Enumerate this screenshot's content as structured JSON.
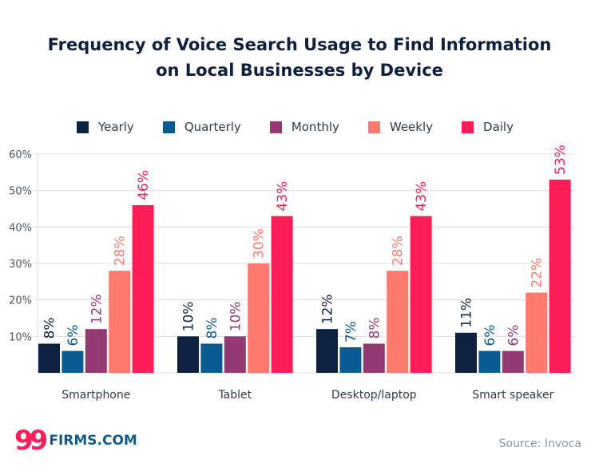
{
  "chart_data": {
    "type": "bar",
    "title": "Frequency of Voice Search Usage to Find Information on Local Businesses by Device",
    "title_lines": [
      "Frequency of Voice Search Usage to Find Information",
      "on Local Businesses by Device"
    ],
    "categories": [
      "Smartphone",
      "Tablet",
      "Desktop/laptop",
      "Smart speaker"
    ],
    "series": [
      {
        "name": "Yearly",
        "color": "#0e2140",
        "values": [
          8,
          10,
          12,
          11
        ]
      },
      {
        "name": "Quarterly",
        "color": "#0a5a94",
        "values": [
          6,
          8,
          7,
          6
        ]
      },
      {
        "name": "Monthly",
        "color": "#933a72",
        "values": [
          12,
          10,
          8,
          6
        ]
      },
      {
        "name": "Weekly",
        "color": "#ff7a6e",
        "values": [
          28,
          30,
          28,
          22
        ]
      },
      {
        "name": "Daily",
        "color": "#ff1d58",
        "values": [
          46,
          43,
          43,
          53
        ]
      }
    ],
    "yticks": [
      "10%",
      "20%",
      "30%",
      "40%",
      "50%",
      "60%"
    ],
    "ylim": [
      0,
      60
    ],
    "unit": "%",
    "grid": true,
    "legend": "top"
  },
  "footer": {
    "logo_number": "99",
    "logo_text": "FIRMS.COM",
    "source": "Source: Invoca"
  }
}
